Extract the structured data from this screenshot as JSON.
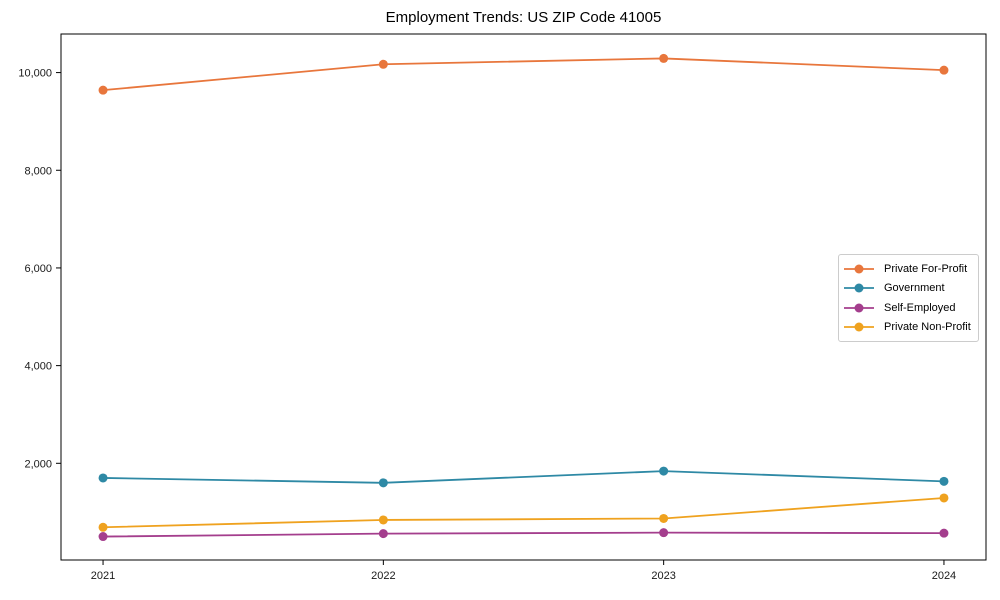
{
  "chart_data": {
    "type": "line",
    "title": "Employment Trends: US ZIP Code 41005",
    "xlabel": "",
    "ylabel": "",
    "categories": [
      "2021",
      "2022",
      "2023",
      "2024"
    ],
    "series": [
      {
        "name": "Private For-Profit",
        "color": "#E8763C",
        "values": [
          9640,
          10170,
          10290,
          10050
        ]
      },
      {
        "name": "Government",
        "color": "#2E89A5",
        "values": [
          1700,
          1600,
          1840,
          1630
        ]
      },
      {
        "name": "Self-Employed",
        "color": "#A43E8D",
        "values": [
          500,
          560,
          580,
          570
        ]
      },
      {
        "name": "Private Non-Profit",
        "color": "#EFA21F",
        "values": [
          690,
          840,
          870,
          1290
        ]
      }
    ],
    "yticks": {
      "values": [
        2000,
        4000,
        6000,
        8000,
        10000
      ],
      "labels": [
        "2,000",
        "4,000",
        "6,000",
        "8,000",
        "10,000"
      ]
    },
    "ylim": [
      20,
      10790
    ],
    "xlim": [
      -0.15,
      3.15
    ],
    "grid": false,
    "legend_position": "center right",
    "axis_color": "#000000",
    "background_color": "#ffffff"
  }
}
